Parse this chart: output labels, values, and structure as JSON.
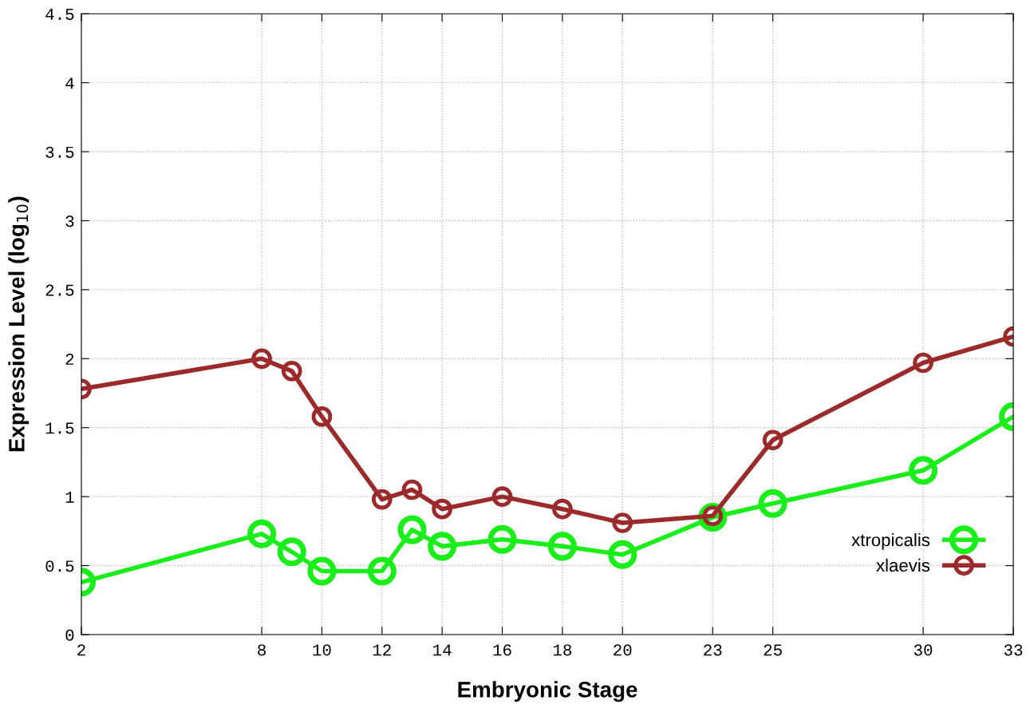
{
  "chart_data": {
    "type": "line",
    "xlabel": "Embryonic Stage",
    "ylabel": "Expression Level (log$_{10}$)",
    "x": [
      2,
      8,
      9,
      10,
      12,
      13,
      14,
      16,
      18,
      20,
      23,
      25,
      30,
      33
    ],
    "series": [
      {
        "name": "xtropicalis",
        "color": "#1aee1a",
        "values": [
          0.38,
          0.73,
          0.6,
          0.46,
          0.46,
          0.76,
          0.64,
          0.69,
          0.64,
          0.58,
          0.85,
          0.95,
          1.19,
          1.58
        ]
      },
      {
        "name": "xlaevis",
        "color": "#9c2a2a",
        "values": [
          1.78,
          2.0,
          1.91,
          1.58,
          0.98,
          1.05,
          0.91,
          1.0,
          0.91,
          0.81,
          0.86,
          1.41,
          1.97,
          2.16
        ]
      }
    ],
    "xlim": [
      2,
      33
    ],
    "xticks": [
      2,
      8,
      10,
      12,
      14,
      16,
      18,
      20,
      23,
      25,
      30,
      33
    ],
    "ylim": [
      0,
      4.5
    ],
    "yticks": [
      0,
      0.5,
      1,
      1.5,
      2,
      2.5,
      3,
      3.5,
      4,
      4.5
    ],
    "grid": true,
    "legend": "bottom right",
    "marker": "circle",
    "line_style": "solid"
  }
}
